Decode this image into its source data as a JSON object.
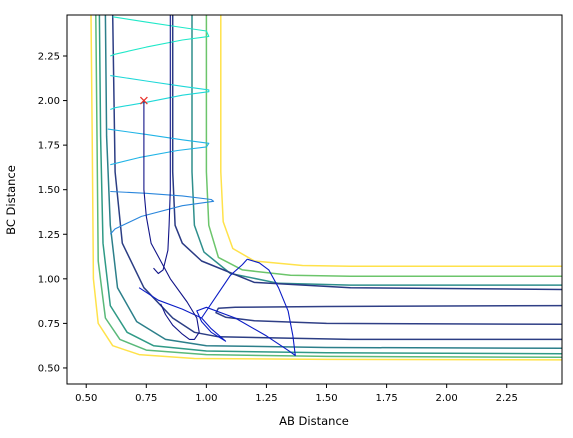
{
  "chart_data": {
    "type": "contour",
    "title": "",
    "xlabel": "AB Distance",
    "ylabel": "BC Distance",
    "xlim": [
      0.42,
      2.48
    ],
    "ylim": [
      0.41,
      2.48
    ],
    "grid": false,
    "x_ticks": [
      {
        "value": 0.5,
        "label": "0.50"
      },
      {
        "value": 0.75,
        "label": "0.75"
      },
      {
        "value": 1.0,
        "label": "1.00"
      },
      {
        "value": 1.25,
        "label": "1.25"
      },
      {
        "value": 1.5,
        "label": "1.50"
      },
      {
        "value": 1.75,
        "label": "1.75"
      },
      {
        "value": 2.0,
        "label": "2.00"
      },
      {
        "value": 2.25,
        "label": "2.25"
      }
    ],
    "y_ticks": [
      {
        "value": 0.5,
        "label": "0.50"
      },
      {
        "value": 0.75,
        "label": "0.75"
      },
      {
        "value": 1.0,
        "label": "1.00"
      },
      {
        "value": 1.25,
        "label": "1.25"
      },
      {
        "value": 1.5,
        "label": "1.50"
      },
      {
        "value": 1.75,
        "label": "1.75"
      },
      {
        "value": 2.0,
        "label": "2.00"
      },
      {
        "value": 2.25,
        "label": "2.25"
      }
    ],
    "contour_lines": [
      {
        "color": "#2c3e84",
        "points": [
          [
            2.48,
            0.66
          ],
          [
            1.6,
            0.66
          ],
          [
            1.05,
            0.675
          ],
          [
            0.95,
            0.7
          ],
          [
            0.86,
            0.78
          ],
          [
            0.74,
            0.95
          ],
          [
            0.65,
            1.2
          ],
          [
            0.62,
            1.6
          ],
          [
            0.61,
            2.48
          ]
        ]
      },
      {
        "color": "#2f3f86",
        "points": [
          [
            2.48,
            0.85
          ],
          [
            1.5,
            0.845
          ],
          [
            1.12,
            0.84
          ],
          [
            1.05,
            0.835
          ],
          [
            1.04,
            0.81
          ],
          [
            1.08,
            0.785
          ],
          [
            1.2,
            0.765
          ],
          [
            1.5,
            0.75
          ],
          [
            2.48,
            0.745
          ]
        ]
      },
      {
        "color": "#2c7f8a",
        "points": [
          [
            2.48,
            0.61
          ],
          [
            1.5,
            0.615
          ],
          [
            1.0,
            0.625
          ],
          [
            0.83,
            0.66
          ],
          [
            0.71,
            0.76
          ],
          [
            0.63,
            0.95
          ],
          [
            0.6,
            1.3
          ],
          [
            0.585,
            1.8
          ],
          [
            0.58,
            2.48
          ]
        ]
      },
      {
        "color": "#2f9a86",
        "points": [
          [
            2.48,
            0.58
          ],
          [
            1.5,
            0.585
          ],
          [
            1.0,
            0.595
          ],
          [
            0.78,
            0.625
          ],
          [
            0.67,
            0.7
          ],
          [
            0.6,
            0.85
          ],
          [
            0.57,
            1.2
          ],
          [
            0.56,
            1.8
          ],
          [
            0.555,
            2.48
          ]
        ]
      },
      {
        "color": "#5ab97a",
        "points": [
          [
            2.48,
            0.56
          ],
          [
            1.5,
            0.565
          ],
          [
            1.0,
            0.575
          ],
          [
            0.75,
            0.6
          ],
          [
            0.64,
            0.66
          ],
          [
            0.58,
            0.78
          ],
          [
            0.55,
            1.1
          ],
          [
            0.545,
            1.8
          ],
          [
            0.54,
            2.48
          ]
        ]
      },
      {
        "color": "#ffe24a",
        "points": [
          [
            2.48,
            0.545
          ],
          [
            1.5,
            0.548
          ],
          [
            0.95,
            0.553
          ],
          [
            0.72,
            0.575
          ],
          [
            0.61,
            0.625
          ],
          [
            0.55,
            0.75
          ],
          [
            0.53,
            1.0
          ],
          [
            0.525,
            1.8
          ],
          [
            0.52,
            2.48
          ]
        ]
      },
      {
        "color": "#2f8f8c",
        "points": [
          [
            0.94,
            2.48
          ],
          [
            0.94,
            1.6
          ],
          [
            0.95,
            1.3
          ],
          [
            0.99,
            1.15
          ],
          [
            1.1,
            1.03
          ],
          [
            1.3,
            0.975
          ],
          [
            1.6,
            0.965
          ],
          [
            2.48,
            0.965
          ]
        ]
      },
      {
        "color": "#6cc56b",
        "points": [
          [
            1.0,
            2.48
          ],
          [
            1.0,
            1.6
          ],
          [
            1.01,
            1.3
          ],
          [
            1.05,
            1.12
          ],
          [
            1.15,
            1.05
          ],
          [
            1.35,
            1.02
          ],
          [
            1.6,
            1.015
          ],
          [
            2.48,
            1.015
          ]
        ]
      },
      {
        "color": "#ffe24a",
        "points": [
          [
            1.06,
            2.48
          ],
          [
            1.06,
            1.6
          ],
          [
            1.07,
            1.32
          ],
          [
            1.11,
            1.17
          ],
          [
            1.2,
            1.1
          ],
          [
            1.4,
            1.075
          ],
          [
            1.6,
            1.07
          ],
          [
            2.48,
            1.07
          ]
        ]
      },
      {
        "color": "#2a3a84",
        "points": [
          [
            0.86,
            2.48
          ],
          [
            0.86,
            1.6
          ],
          [
            0.87,
            1.3
          ],
          [
            0.9,
            1.2
          ],
          [
            0.98,
            1.1
          ],
          [
            1.2,
            0.98
          ],
          [
            1.6,
            0.95
          ],
          [
            2.48,
            0.94
          ]
        ]
      }
    ],
    "trajectory": [
      {
        "color": "#1fe8c8",
        "points": [
          [
            0.61,
            2.47
          ],
          [
            0.75,
            2.44
          ],
          [
            0.9,
            2.41
          ],
          [
            1.0,
            2.39
          ],
          [
            1.01,
            2.36
          ],
          [
            0.9,
            2.34
          ],
          [
            0.75,
            2.3
          ],
          [
            0.62,
            2.26
          ],
          [
            0.6,
            2.25
          ]
        ]
      },
      {
        "color": "#1fd8d8",
        "points": [
          [
            0.6,
            2.14
          ],
          [
            0.75,
            2.11
          ],
          [
            0.9,
            2.08
          ],
          [
            1.01,
            2.06
          ],
          [
            1.01,
            2.05
          ],
          [
            0.9,
            2.03
          ],
          [
            0.75,
            1.99
          ],
          [
            0.62,
            1.96
          ],
          [
            0.6,
            1.95
          ]
        ]
      },
      {
        "color": "#21b4e6",
        "points": [
          [
            0.59,
            1.84
          ],
          [
            0.75,
            1.81
          ],
          [
            0.9,
            1.78
          ],
          [
            1.01,
            1.76
          ],
          [
            1.0,
            1.74
          ],
          [
            0.88,
            1.72
          ],
          [
            0.72,
            1.68
          ],
          [
            0.6,
            1.64
          ]
        ]
      },
      {
        "color": "#2a86dc",
        "points": [
          [
            0.6,
            1.49
          ],
          [
            0.75,
            1.48
          ],
          [
            0.9,
            1.465
          ],
          [
            1.02,
            1.445
          ],
          [
            1.03,
            1.435
          ],
          [
            0.9,
            1.41
          ],
          [
            0.73,
            1.35
          ],
          [
            0.62,
            1.28
          ],
          [
            0.6,
            1.25
          ]
        ]
      },
      {
        "color": "#0b1cc6",
        "points": [
          [
            1.17,
            1.11
          ],
          [
            1.22,
            1.09
          ],
          [
            1.26,
            1.05
          ],
          [
            1.3,
            0.95
          ],
          [
            1.34,
            0.82
          ],
          [
            1.36,
            0.68
          ],
          [
            1.37,
            0.57
          ],
          [
            1.35,
            0.59
          ],
          [
            1.25,
            0.68
          ],
          [
            1.12,
            0.78
          ],
          [
            1.0,
            0.84
          ],
          [
            0.96,
            0.82
          ],
          [
            0.98,
            0.76
          ],
          [
            1.02,
            0.7
          ],
          [
            1.08,
            0.65
          ],
          [
            1.02,
            0.72
          ],
          [
            0.98,
            0.78
          ],
          [
            0.9,
            0.83
          ],
          [
            0.8,
            0.88
          ],
          [
            0.72,
            0.95
          ]
        ]
      },
      {
        "color": "#0b1cc6",
        "points": [
          [
            0.98,
            0.78
          ],
          [
            1.05,
            0.92
          ],
          [
            1.1,
            1.02
          ],
          [
            1.15,
            1.08
          ],
          [
            1.17,
            1.11
          ]
        ]
      },
      {
        "color": "#111488",
        "points": [
          [
            0.74,
            2.0
          ],
          [
            0.74,
            1.7
          ],
          [
            0.74,
            1.5
          ],
          [
            0.75,
            1.35
          ],
          [
            0.77,
            1.2
          ],
          [
            0.81,
            1.1
          ],
          [
            0.85,
            1.0
          ],
          [
            0.92,
            0.87
          ],
          [
            0.96,
            0.78
          ],
          [
            0.97,
            0.7
          ],
          [
            0.95,
            0.66
          ],
          [
            0.93,
            0.66
          ],
          [
            0.9,
            0.69
          ],
          [
            0.86,
            0.74
          ],
          [
            0.83,
            0.8
          ],
          [
            0.81,
            0.86
          ]
        ]
      },
      {
        "color": "#111488",
        "points": [
          [
            0.85,
            2.48
          ],
          [
            0.85,
            2.2
          ],
          [
            0.85,
            1.8
          ],
          [
            0.85,
            1.5
          ],
          [
            0.845,
            1.3
          ],
          [
            0.84,
            1.16
          ],
          [
            0.82,
            1.05
          ],
          [
            0.8,
            1.03
          ],
          [
            0.78,
            1.06
          ]
        ]
      }
    ],
    "markers": [
      {
        "x": 0.74,
        "y": 2.0,
        "symbol": "x",
        "color": "#e8322a"
      }
    ]
  }
}
